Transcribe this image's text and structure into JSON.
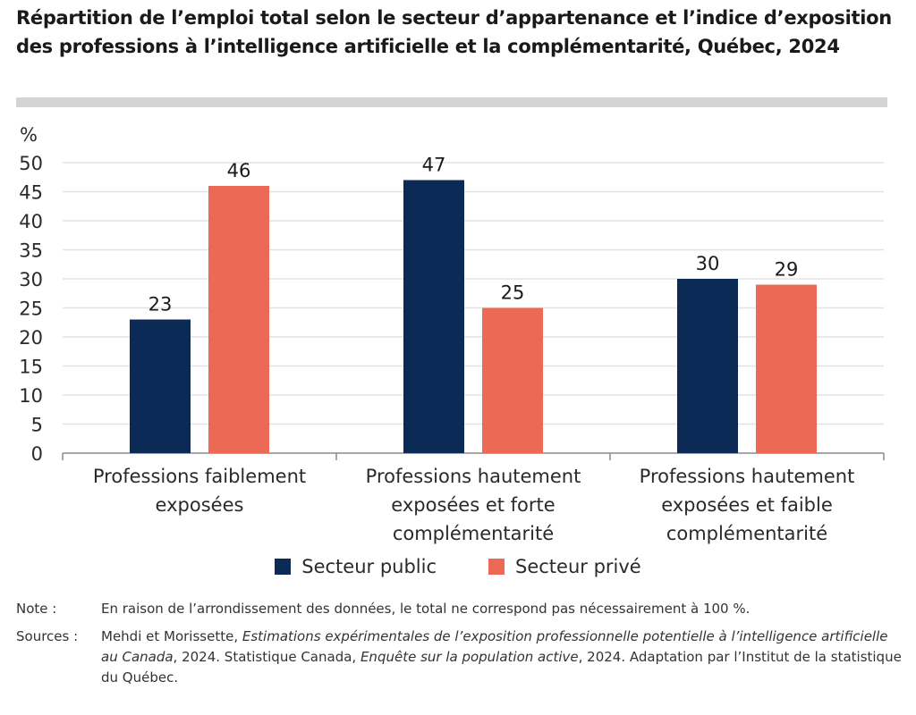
{
  "title": "Répartition de l’emploi total selon le secteur d’appartenance et l’indice d’exposition des professions à l’intelligence artificielle et la complémentarité, Québec, 2024",
  "chart_data": {
    "type": "bar",
    "title": "Répartition de l’emploi total selon le secteur d’appartenance et l’indice d’exposition des professions à l’intelligence artificielle et la complémentarité, Québec, 2024",
    "xlabel": "",
    "ylabel": "%",
    "ylim": [
      0,
      50
    ],
    "yticks": [
      0,
      5,
      10,
      15,
      20,
      25,
      30,
      35,
      40,
      45,
      50
    ],
    "grid": true,
    "categories": [
      [
        "Professions faiblement",
        "exposées"
      ],
      [
        "Professions hautement",
        "exposées et forte",
        "complémentarité"
      ],
      [
        "Professions hautement",
        "exposées et faible",
        "complémentarité"
      ]
    ],
    "series": [
      {
        "name": "Secteur public",
        "color": "#0b2a55",
        "values": [
          23,
          47,
          30
        ],
        "labels": [
          "23",
          "47",
          "30"
        ]
      },
      {
        "name": "Secteur privé",
        "color": "#ec6a55",
        "values": [
          46,
          25,
          29
        ],
        "labels": [
          "46",
          "25",
          "29"
        ]
      }
    ],
    "legend_position": "bottom-center"
  },
  "legend": {
    "items": [
      {
        "label": "Secteur public",
        "color": "#0b2a55"
      },
      {
        "label": "Secteur privé",
        "color": "#ec6a55"
      }
    ]
  },
  "notes": {
    "note_label": "Note :",
    "note_text": "En raison de l’arrondissement des données, le total ne correspond pas nécessairement à 100 %.",
    "sources_label": "Sources :",
    "sources_parts": [
      {
        "text": "Mehdi et Morissette, ",
        "italic": false
      },
      {
        "text": "Estimations expérimentales de l’exposition professionnelle potentielle à l’intelligence artificielle au Canada",
        "italic": true
      },
      {
        "text": ", 2024. Statistique Canada, ",
        "italic": false
      },
      {
        "text": "Enquête sur la population active",
        "italic": true
      },
      {
        "text": ", 2024. Adaptation par l’Institut de la statistique du Québec.",
        "italic": false
      }
    ]
  }
}
